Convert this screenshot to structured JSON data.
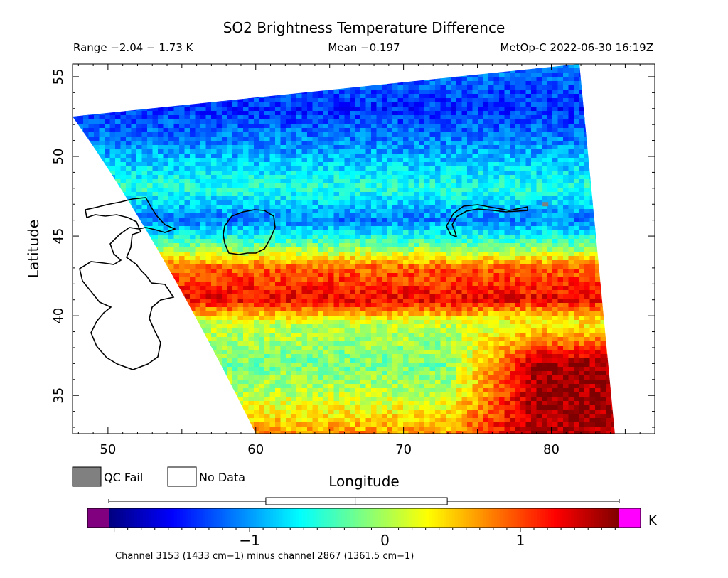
{
  "chart_data": {
    "type": "heatmap",
    "title": "SO2 Brightness Temperature Difference",
    "subtitle_left": "Range −2.04 − 1.73 K",
    "subtitle_center": "Mean −0.197",
    "subtitle_right": "MetOp-C 2022-06-30 16:19Z",
    "xlabel": "Longitude",
    "ylabel": "Latitude",
    "xlim": [
      47.6,
      87.0
    ],
    "ylim": [
      32.6,
      55.8
    ],
    "x_ticks": [
      50,
      60,
      70,
      80
    ],
    "y_ticks": [
      35,
      40,
      45,
      50,
      55
    ],
    "x_tick_labels": [
      "50",
      "60",
      "70",
      "80"
    ],
    "y_tick_labels": [
      "35",
      "40",
      "45",
      "50",
      "55"
    ],
    "value_range": [
      -2.04,
      1.73
    ],
    "mean": -0.197,
    "swath_corners": [
      [
        47.6,
        52.5
      ],
      [
        81.9,
        55.8
      ],
      [
        84.3,
        32.6
      ],
      [
        60.0,
        32.6
      ]
    ],
    "bands": [
      {
        "lat": 32.6,
        "value": 0.7
      },
      {
        "lat": 35.0,
        "value": 0.1
      },
      {
        "lat": 37.0,
        "value": -0.2
      },
      {
        "lat": 39.5,
        "value": 0.1
      },
      {
        "lat": 41.0,
        "value": 1.3
      },
      {
        "lat": 43.0,
        "value": 0.9
      },
      {
        "lat": 44.5,
        "value": -0.3
      },
      {
        "lat": 46.0,
        "value": -1.1
      },
      {
        "lat": 48.0,
        "value": -0.5
      },
      {
        "lat": 50.5,
        "value": -1.0
      },
      {
        "lat": 53.0,
        "value": -1.4
      },
      {
        "lat": 55.8,
        "value": -1.1
      }
    ],
    "hot_region": {
      "lon_min": 73,
      "lat_max": 40,
      "value": 1.6
    },
    "qc_fail_pixels": [
      [
        79.6,
        47.0
      ]
    ],
    "colorbar": {
      "unit": "K",
      "min": -2.04,
      "max": 1.73,
      "ticks": [
        -1,
        0,
        1
      ],
      "tick_labels": [
        "−1",
        "0",
        "1"
      ],
      "colors": [
        "#00007f",
        "#0000ff",
        "#007fff",
        "#00ffff",
        "#7fff7f",
        "#ffff00",
        "#ff7f00",
        "#ff0000",
        "#7f0000"
      ],
      "under_color": "#800080",
      "over_color": "#ff00ff",
      "box": {
        "whisker_low": -2.04,
        "q1": -0.88,
        "median": -0.22,
        "q3": 0.46,
        "whisker_high": 1.73
      }
    },
    "legend": [
      {
        "label": "QC Fail",
        "color": "#808080"
      },
      {
        "label": "No Data",
        "color": "#ffffff"
      }
    ],
    "footnote": "Channel 3153 (1433 cm−1) minus channel 2867 (1361.5 cm−1)"
  }
}
